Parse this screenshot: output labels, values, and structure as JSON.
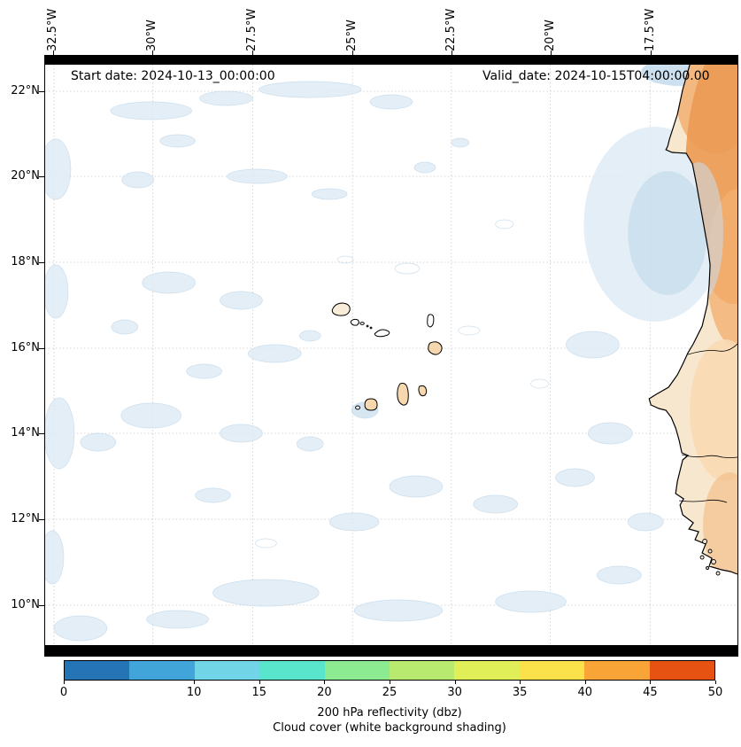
{
  "annotations": {
    "start_date": "Start date: 2024-10-13_00:00:00",
    "valid_date": "Valid_date: 2024-10-15T04:00:00.00"
  },
  "axes": {
    "lon_labels": [
      "32.5°W",
      "30°W",
      "27.5°W",
      "25°W",
      "22.5°W",
      "20°W",
      "17.5°W"
    ],
    "lat_labels": [
      "22°N",
      "20°N",
      "18°N",
      "16°N",
      "14°N",
      "12°N",
      "10°N"
    ]
  },
  "colorbar": {
    "title": "200 hPa reflectivity (dbz)",
    "subtitle": "Cloud cover (white background shading)",
    "range_min": 0,
    "range_max": 50,
    "tick_values": [
      0,
      10,
      15,
      20,
      25,
      30,
      35,
      40,
      45,
      50
    ],
    "tick_labels": [
      "0",
      "10",
      "15",
      "20",
      "25",
      "30",
      "35",
      "40",
      "45",
      "50"
    ],
    "colors": [
      "#2474b6",
      "#41a5d9",
      "#72d5e7",
      "#59e4cc",
      "#8cea91",
      "#b8ea70",
      "#e0ee57",
      "#fbe24a",
      "#f9a437",
      "#e65211"
    ],
    "accent_land_color": "#eb9a52",
    "cloud_shade_color": "#dfecf6"
  }
}
